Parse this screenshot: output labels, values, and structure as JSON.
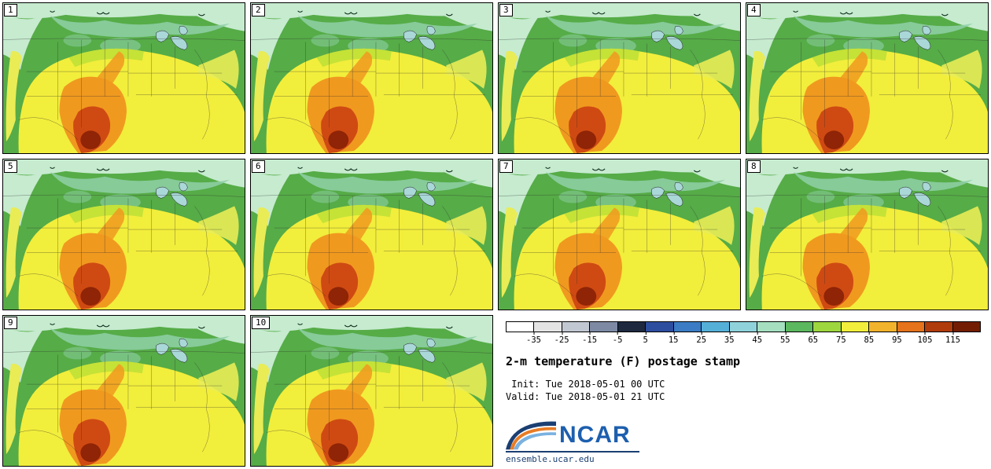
{
  "figure": {
    "title": "2-m temperature (F) postage stamp",
    "init_line": " Init: Tue 2018-05-01 00 UTC",
    "valid_line": "Valid: Tue 2018-05-01 21 UTC"
  },
  "panels": [
    {
      "label": "1"
    },
    {
      "label": "2"
    },
    {
      "label": "3"
    },
    {
      "label": "4"
    },
    {
      "label": "5"
    },
    {
      "label": "6"
    },
    {
      "label": "7"
    },
    {
      "label": "8"
    },
    {
      "label": "9"
    },
    {
      "label": "10"
    }
  ],
  "colorbar": {
    "tick_labels": [
      "-35",
      "-25",
      "-15",
      "-5",
      "5",
      "15",
      "25",
      "35",
      "45",
      "55",
      "65",
      "75",
      "85",
      "95",
      "105",
      "115"
    ],
    "segment_colors": [
      "#ffffff",
      "#e4e4e4",
      "#c2c8d2",
      "#7e8aa4",
      "#1e2940",
      "#2d4d9e",
      "#3b7cc4",
      "#55b0d8",
      "#8fd2da",
      "#a5dfc0",
      "#5cb85e",
      "#9ed63d",
      "#f2ee3c",
      "#f2b32c",
      "#e4731b",
      "#b03c0c",
      "#731e04"
    ]
  },
  "map_colors": {
    "cool_mint": "#c6ebcf",
    "teal": "#8fd0a8",
    "green": "#56ac47",
    "yellow_green": "#b9df36",
    "yellow": "#f2ee3c",
    "pale_yellow": "#e9ec55",
    "orange": "#f0991f",
    "red": "#cf4a12",
    "dark_red": "#8f2406",
    "lakes": "#aad7d8"
  },
  "logo": {
    "text": "NCAR",
    "site": "ensemble.ucar.edu",
    "brand_blue": "#1d5fae",
    "brand_navy": "#1b3f72",
    "brand_orange": "#e87c25"
  }
}
